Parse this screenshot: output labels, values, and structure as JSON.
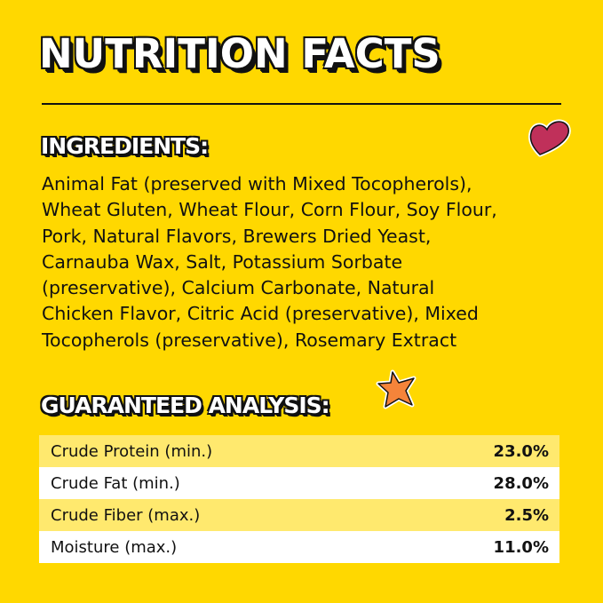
{
  "title": "NUTRITION FACTS",
  "ingredients": {
    "heading": "INGREDIENTS:",
    "lines": [
      "Animal Fat (preserved with Mixed Tocopherols),",
      "Wheat Gluten, Wheat Flour, Corn Flour, Soy Flour,",
      "Pork, Natural Flavors, Brewers Dried Yeast,",
      "Carnauba Wax, Salt, Potassium Sorbate",
      "(preservative), Calcium Carbonate, Natural",
      "Chicken Flavor, Citric Acid (preservative), Mixed",
      "Tocopherols (preservative), Rosemary Extract"
    ]
  },
  "analysis": {
    "heading": "GUARANTEED ANALYSIS:",
    "rows": [
      {
        "label": "Crude Protein (min.)",
        "value": "23.0%"
      },
      {
        "label": "Crude Fat (min.)",
        "value": "28.0%"
      },
      {
        "label": "Crude Fiber (max.)",
        "value": "2.5%"
      },
      {
        "label": "Moisture (max.)",
        "value": "11.0%"
      }
    ]
  },
  "decorations": {
    "heart": "heart-icon",
    "star": "star-icon",
    "heart_color": "#C0305A",
    "star_color": "#F5843A",
    "background": "#FFD800"
  }
}
